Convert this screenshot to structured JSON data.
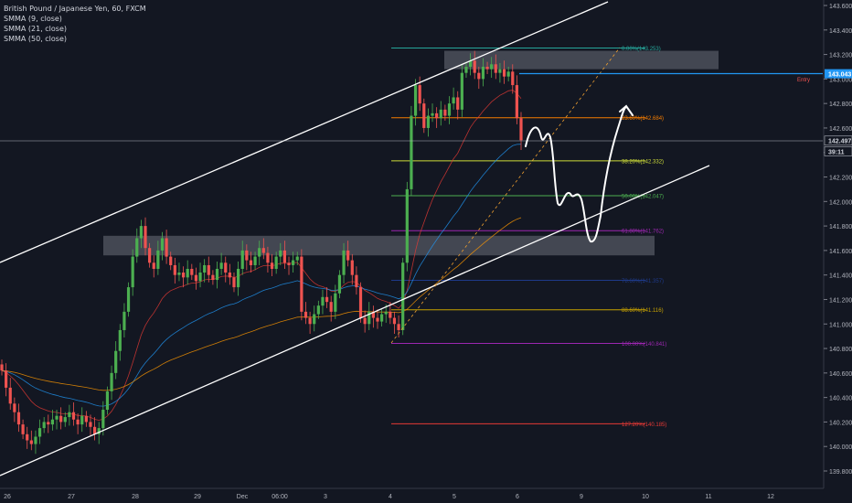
{
  "legend": {
    "symbol": "British Pound / Japanese Yen, 60, FXCM",
    "ma1": "SMMA (9, close)",
    "ma2": "SMMA (21, close)",
    "ma3": "SMMA (50, close)"
  },
  "colors": {
    "background": "#131722",
    "up": "#26a69a",
    "up_body": "#4caf50",
    "down": "#ef5350",
    "ma9": "#e53935",
    "ma21": "#2196f3",
    "ma50": "#ff9800",
    "channel": "#ffffff",
    "zone": "#6b6f7a"
  },
  "chart_data": {
    "type": "candlestick",
    "title": "British Pound / Japanese Yen, 60, FXCM",
    "ylim": [
      139.8,
      143.6
    ],
    "y_ticks": [
      "143.600",
      "143.400",
      "143.200",
      "143.000",
      "142.800",
      "142.600",
      "142.400",
      "142.200",
      "142.000",
      "141.800",
      "141.600",
      "141.400",
      "141.200",
      "141.000",
      "140.800",
      "140.600",
      "140.400",
      "140.200",
      "140.000",
      "139.800"
    ],
    "x_ticks": [
      "26",
      "27",
      "28",
      "29",
      "Dec",
      "06:00",
      "3",
      "4",
      "5",
      "6",
      "9",
      "10",
      "11",
      "12"
    ],
    "price_labels": [
      {
        "text": "143.043",
        "value": 143.043,
        "color": "#2196f3"
      },
      {
        "text": "142.497",
        "value": 142.497,
        "color": "#131722"
      },
      {
        "text": "39:11",
        "value": 142.41,
        "color": "#131722"
      }
    ],
    "entry_label": "Entry",
    "fib_levels": [
      {
        "label": "0.00%(143.253)",
        "value": 143.253,
        "color": "#26a69a"
      },
      {
        "label": "23.60%(142.684)",
        "value": 142.684,
        "color": "#f57c00"
      },
      {
        "label": "38.20%(142.332)",
        "value": 142.332,
        "color": "#cddc39"
      },
      {
        "label": "50.00%(142.047)",
        "value": 142.047,
        "color": "#4caf50"
      },
      {
        "label": "61.80%(141.762)",
        "value": 141.762,
        "color": "#9c27b0"
      },
      {
        "label": "78.60%(141.357)",
        "value": 141.357,
        "color": "#1e3a8a"
      },
      {
        "label": "88.60%(141.116)",
        "value": 141.116,
        "color": "#c8a200"
      },
      {
        "label": "100.00%(140.841)",
        "value": 140.841,
        "color": "#9c27b0"
      },
      {
        "label": "127.20%(140.185)",
        "value": 140.185,
        "color": "#e53935"
      }
    ],
    "zones": [
      {
        "name": "upper-zone",
        "from": 143.08,
        "to": 143.23
      },
      {
        "name": "lower-zone",
        "from": 141.56,
        "to": 141.72
      }
    ],
    "closes": [
      140.62,
      140.48,
      140.35,
      140.28,
      140.18,
      140.1,
      140.05,
      140.02,
      140.08,
      140.15,
      140.2,
      140.18,
      140.22,
      140.25,
      140.2,
      140.24,
      140.28,
      140.22,
      140.18,
      140.25,
      140.2,
      140.16,
      140.1,
      140.15,
      140.3,
      140.45,
      140.6,
      140.78,
      140.95,
      141.1,
      141.3,
      141.55,
      141.7,
      141.8,
      141.62,
      141.5,
      141.45,
      141.6,
      141.7,
      141.55,
      141.48,
      141.4,
      141.42,
      141.38,
      141.45,
      141.4,
      141.35,
      141.42,
      141.48,
      141.4,
      141.36,
      141.45,
      141.5,
      141.42,
      141.38,
      141.3,
      141.45,
      141.6,
      141.52,
      141.48,
      141.55,
      141.62,
      141.58,
      141.5,
      141.45,
      141.55,
      141.6,
      141.5,
      141.48,
      141.52,
      141.55,
      141.1,
      141.05,
      141.0,
      141.08,
      141.15,
      141.22,
      141.18,
      141.1,
      141.25,
      141.4,
      141.6,
      141.52,
      141.4,
      141.3,
      141.05,
      141.0,
      141.1,
      141.05,
      141.02,
      141.08,
      141.1,
      141.05,
      141.0,
      140.95,
      141.5,
      142.1,
      142.7,
      142.95,
      142.8,
      142.6,
      142.7,
      142.72,
      142.68,
      142.75,
      142.7,
      142.8,
      142.85,
      142.75,
      143.05,
      143.1,
      143.15,
      143.05,
      143.0,
      143.1,
      143.08,
      143.12,
      143.05,
      143.08,
      143.02,
      143.06,
      142.95,
      142.68,
      142.5
    ]
  }
}
